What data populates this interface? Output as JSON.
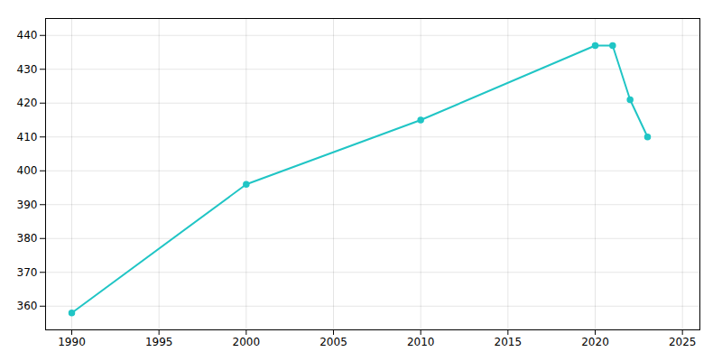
{
  "chart_data": {
    "type": "line",
    "x": [
      1990,
      2000,
      2010,
      2020,
      2021,
      2022,
      2023
    ],
    "values": [
      358,
      396,
      415,
      437,
      437,
      421,
      410
    ],
    "color": "#20C5C5",
    "marker": "circle",
    "xlim": [
      1988.5,
      2026
    ],
    "ylim": [
      353,
      445
    ],
    "xticks": [
      1990,
      1995,
      2000,
      2005,
      2010,
      2015,
      2020,
      2025
    ],
    "yticks": [
      360,
      370,
      380,
      390,
      400,
      410,
      420,
      430,
      440
    ],
    "grid": true
  }
}
